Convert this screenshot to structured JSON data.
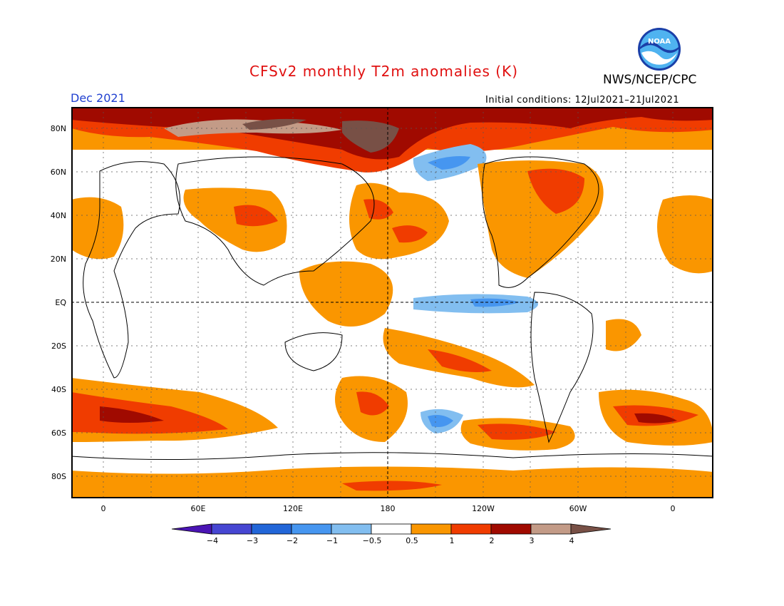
{
  "header": {
    "title": "CFSv2 monthly T2m anomalies (K)",
    "agency": "NWS/NCEP/CPC",
    "month": "Dec 2021",
    "initial_conditions": "Initial conditions: 12Jul2021–21Jul2021",
    "logo_text": "NOAA"
  },
  "axes": {
    "lat_labels": [
      "80N",
      "60N",
      "40N",
      "20N",
      "EQ",
      "20S",
      "40S",
      "60S",
      "80S"
    ],
    "lon_labels": [
      "0",
      "60E",
      "120E",
      "180",
      "120W",
      "60W",
      "0"
    ]
  },
  "colorbar": {
    "labels": [
      "−4",
      "−3",
      "−2",
      "−1",
      "−0.5",
      "0.5",
      "1",
      "2",
      "3",
      "4"
    ],
    "colors": [
      "#4a14b4",
      "#4646d2",
      "#2266d8",
      "#4696f0",
      "#82bef0",
      "#ffffff",
      "#fa9600",
      "#f03c00",
      "#a00a00",
      "#c39b87",
      "#785046"
    ]
  },
  "palette": {
    "pos05": "#fa9600",
    "pos1": "#f03c00",
    "pos2": "#a00a00",
    "pos3": "#c39b87",
    "pos4": "#785046",
    "neg05": "#82bef0",
    "neg1": "#4696f0",
    "coast": "#000000",
    "grid": "#555555"
  }
}
